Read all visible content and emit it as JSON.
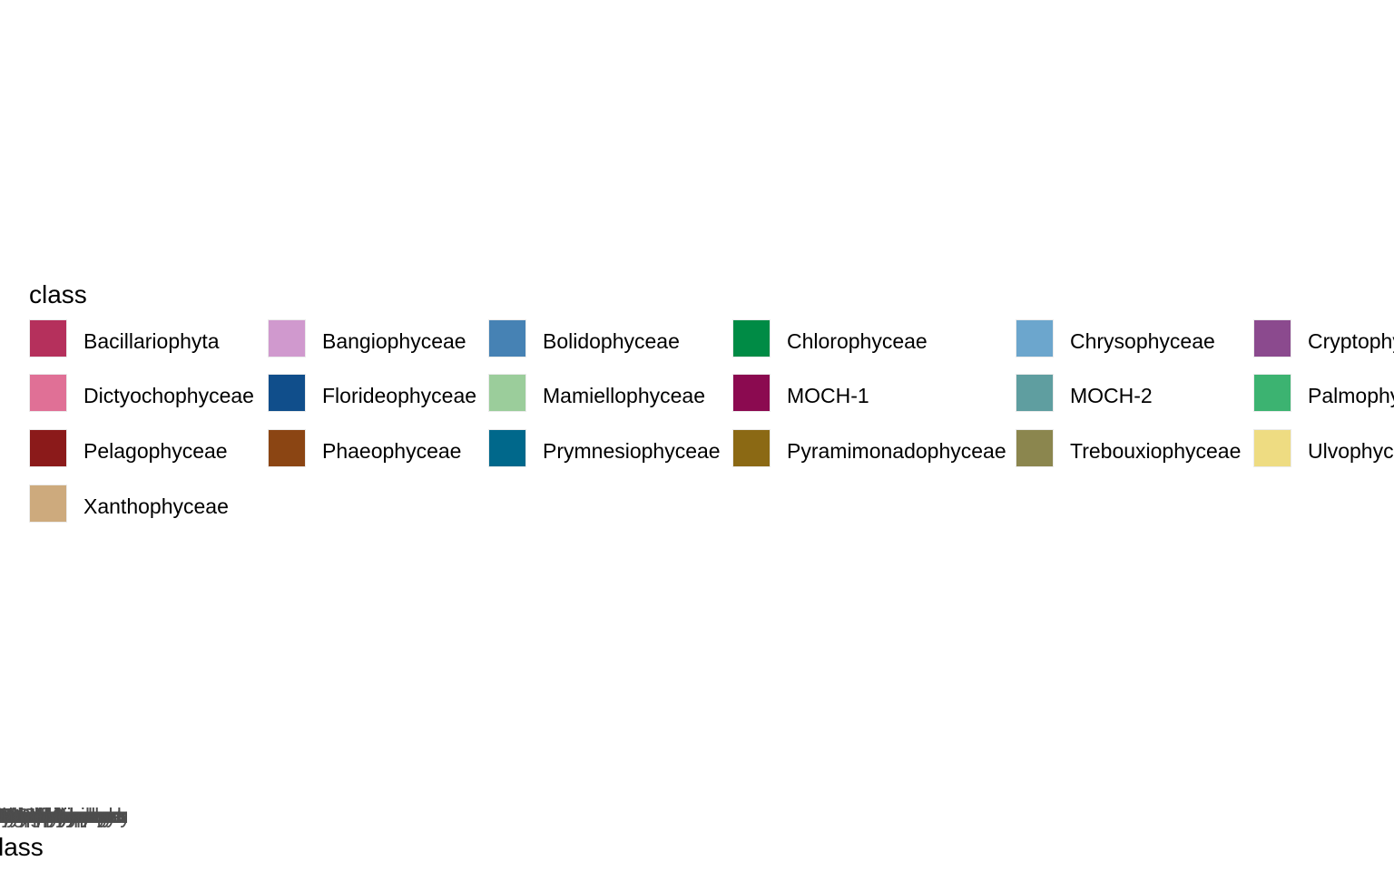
{
  "chart_data": {
    "type": "bar",
    "title": "",
    "xlabel": "class",
    "legend_title": "class",
    "legend_position": "center",
    "categories": [
      "Bacillariophyta",
      "Bangiophyceae",
      "Bolidophyceae",
      "Chlorophyceae",
      "Chrysophyceae",
      "Cryptophyceae",
      "Dictyochophyceae",
      "Florideophyceae",
      "Mamiellophyceae",
      "MOCH-1",
      "MOCH-2",
      "Palmophyceae",
      "Pelagophyceae",
      "Phaeophyceae",
      "Prymnesiophyceae",
      "Pyramimonadophyceae",
      "Trebouxiophyceae",
      "Ulvophyceae",
      "Xanthophyceae"
    ],
    "legend_entries": [
      {
        "label": "Bacillariophyta",
        "color": "#b5305c"
      },
      {
        "label": "Bangiophyceae",
        "color": "#d099ce"
      },
      {
        "label": "Bolidophyceae",
        "color": "#4682b4"
      },
      {
        "label": "Chlorophyceae",
        "color": "#008b45"
      },
      {
        "label": "Chrysophyceae",
        "color": "#6ca6cd"
      },
      {
        "label": "Cryptophyceae",
        "color": "#8b4a8e"
      },
      {
        "label": "Dictyochophyceae",
        "color": "#e07096"
      },
      {
        "label": "Florideophyceae",
        "color": "#104e8b"
      },
      {
        "label": "Mamiellophyceae",
        "color": "#9bcd9b"
      },
      {
        "label": "MOCH-1",
        "color": "#8b0a50"
      },
      {
        "label": "MOCH-2",
        "color": "#5f9ea0"
      },
      {
        "label": "Palmophyceae",
        "color": "#3cb371"
      },
      {
        "label": "Pelagophyceae",
        "color": "#8b1a1a"
      },
      {
        "label": "Phaeophyceae",
        "color": "#8b4513"
      },
      {
        "label": "Prymnesiophyceae",
        "color": "#00688b"
      },
      {
        "label": "Pyramimonadophyceae",
        "color": "#8b6914"
      },
      {
        "label": "Trebouxiophyceae",
        "color": "#8b864e"
      },
      {
        "label": "Ulvophyceae",
        "color": "#eedc82"
      },
      {
        "label": "Xanthophyceae",
        "color": "#cdaa7d"
      }
    ]
  }
}
